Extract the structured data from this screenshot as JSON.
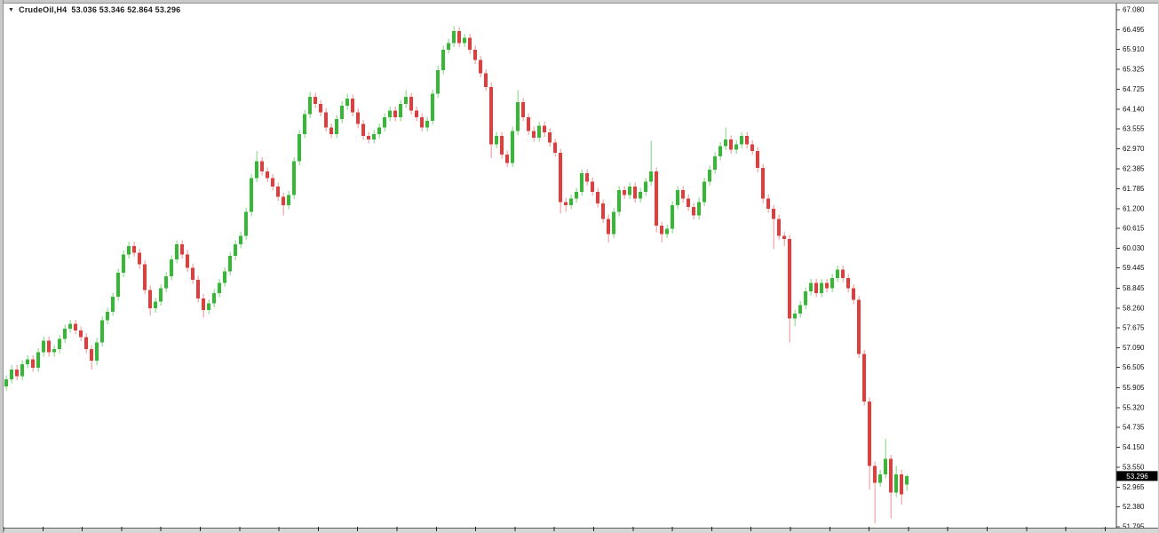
{
  "header": {
    "dropdown_icon": "▼",
    "symbol": "CrudeOil,H4",
    "ohlc_text": "53.036 53.346 52.864 53.296",
    "open": "53.036",
    "high": "53.346",
    "low": "52.864",
    "close": "53.296"
  },
  "price_axis": {
    "current_price_label": "53.296"
  },
  "colors": {
    "background": "#ffffff",
    "up_body": "#35b935",
    "down_body": "#e23c3c",
    "up_wick": "#a9e2a9",
    "down_wick": "#f3b6b6",
    "axis_line": "#3c3c3c",
    "axis_text": "#111111",
    "badge_bg": "#000000",
    "badge_text": "#ffffff",
    "time_bar_fill": "#d6d6d6",
    "time_bar_line": "#5f5f5f",
    "tick": "#222222"
  },
  "chart_data": {
    "type": "candlestick",
    "symbol": "CrudeOil",
    "timeframe": "H4",
    "title": "CrudeOil,H4",
    "grid": false,
    "price_top": 67.08,
    "price_bottom": 51.795,
    "last_close": 53.296,
    "y_axis_labels": [
      "67.080",
      "66.495",
      "65.910",
      "65.325",
      "64.725",
      "64.140",
      "63.555",
      "62.970",
      "62.385",
      "61.785",
      "61.200",
      "60.615",
      "60.030",
      "59.445",
      "58.845",
      "58.260",
      "57.675",
      "57.090",
      "56.505",
      "55.905",
      "55.320",
      "54.735",
      "54.150",
      "53.550",
      "52.965",
      "52.380",
      "51.795"
    ],
    "candles": [
      [
        55.95,
        56.27,
        55.83,
        56.15
      ],
      [
        56.15,
        56.57,
        56.03,
        56.45
      ],
      [
        56.45,
        56.57,
        56.13,
        56.25
      ],
      [
        56.25,
        56.72,
        56.13,
        56.6
      ],
      [
        56.6,
        56.87,
        56.48,
        56.75
      ],
      [
        56.75,
        56.87,
        56.38,
        56.5
      ],
      [
        56.5,
        57.07,
        56.38,
        56.95
      ],
      [
        56.95,
        57.42,
        56.83,
        57.3
      ],
      [
        57.3,
        57.42,
        56.83,
        56.95
      ],
      [
        56.95,
        57.17,
        56.83,
        57.05
      ],
      [
        57.05,
        57.47,
        56.93,
        57.35
      ],
      [
        57.35,
        57.77,
        57.23,
        57.65
      ],
      [
        57.65,
        57.92,
        57.53,
        57.8
      ],
      [
        57.8,
        57.92,
        57.48,
        57.6
      ],
      [
        57.6,
        57.72,
        57.28,
        57.4
      ],
      [
        57.4,
        57.52,
        56.93,
        57.05
      ],
      [
        57.05,
        57.17,
        56.45,
        56.7
      ],
      [
        56.7,
        57.37,
        56.58,
        57.25
      ],
      [
        57.25,
        58.02,
        57.13,
        57.9
      ],
      [
        57.9,
        58.27,
        57.78,
        58.15
      ],
      [
        58.15,
        58.72,
        58.03,
        58.6
      ],
      [
        58.6,
        59.42,
        58.48,
        59.3
      ],
      [
        59.3,
        59.97,
        59.18,
        59.85
      ],
      [
        59.85,
        60.22,
        59.73,
        60.1
      ],
      [
        60.1,
        60.22,
        59.78,
        59.9
      ],
      [
        59.9,
        60.02,
        59.43,
        59.55
      ],
      [
        59.55,
        59.67,
        58.68,
        58.8
      ],
      [
        58.8,
        58.92,
        58.05,
        58.25
      ],
      [
        58.25,
        58.57,
        58.13,
        58.45
      ],
      [
        58.45,
        58.97,
        58.33,
        58.85
      ],
      [
        58.85,
        59.32,
        58.73,
        59.2
      ],
      [
        59.2,
        59.82,
        59.08,
        59.7
      ],
      [
        59.7,
        60.27,
        59.58,
        60.15
      ],
      [
        60.15,
        60.27,
        59.73,
        59.85
      ],
      [
        59.85,
        59.97,
        59.33,
        59.45
      ],
      [
        59.45,
        59.57,
        58.98,
        59.1
      ],
      [
        59.1,
        59.22,
        58.43,
        58.55
      ],
      [
        58.55,
        58.67,
        57.98,
        58.2
      ],
      [
        58.2,
        58.52,
        58.08,
        58.4
      ],
      [
        58.4,
        58.82,
        58.28,
        58.7
      ],
      [
        58.7,
        59.12,
        58.58,
        59.0
      ],
      [
        59.0,
        59.47,
        58.88,
        59.35
      ],
      [
        59.35,
        59.92,
        59.23,
        59.8
      ],
      [
        59.8,
        60.27,
        59.68,
        60.15
      ],
      [
        60.15,
        60.52,
        60.03,
        60.4
      ],
      [
        60.4,
        61.22,
        60.28,
        61.1
      ],
      [
        61.1,
        62.22,
        60.98,
        62.1
      ],
      [
        62.1,
        62.9,
        61.98,
        62.6
      ],
      [
        62.6,
        62.72,
        62.18,
        62.3
      ],
      [
        62.3,
        62.42,
        61.98,
        62.1
      ],
      [
        62.1,
        62.22,
        61.73,
        61.85
      ],
      [
        61.85,
        61.97,
        61.43,
        61.55
      ],
      [
        61.55,
        61.67,
        61.0,
        61.3
      ],
      [
        61.3,
        61.72,
        61.18,
        61.6
      ],
      [
        61.6,
        62.72,
        61.48,
        62.6
      ],
      [
        62.6,
        63.52,
        62.48,
        63.4
      ],
      [
        63.4,
        64.12,
        63.28,
        64.0
      ],
      [
        64.0,
        64.65,
        63.88,
        64.5
      ],
      [
        64.5,
        64.62,
        64.18,
        64.3
      ],
      [
        64.3,
        64.42,
        63.93,
        64.05
      ],
      [
        64.05,
        64.17,
        63.48,
        63.6
      ],
      [
        63.6,
        63.72,
        63.28,
        63.4
      ],
      [
        63.4,
        63.97,
        63.28,
        63.85
      ],
      [
        63.85,
        64.37,
        63.73,
        64.25
      ],
      [
        64.25,
        64.6,
        64.13,
        64.45
      ],
      [
        64.45,
        64.57,
        63.93,
        64.05
      ],
      [
        64.05,
        64.17,
        63.58,
        63.7
      ],
      [
        63.7,
        63.82,
        63.23,
        63.35
      ],
      [
        63.35,
        63.47,
        63.13,
        63.25
      ],
      [
        63.25,
        63.52,
        63.13,
        63.4
      ],
      [
        63.4,
        63.72,
        63.28,
        63.6
      ],
      [
        63.6,
        64.02,
        63.48,
        63.9
      ],
      [
        63.9,
        64.22,
        63.78,
        64.1
      ],
      [
        64.1,
        64.22,
        63.78,
        63.9
      ],
      [
        63.9,
        64.42,
        63.78,
        64.3
      ],
      [
        64.3,
        64.7,
        64.18,
        64.5
      ],
      [
        64.5,
        64.62,
        63.98,
        64.1
      ],
      [
        64.1,
        64.22,
        63.78,
        63.9
      ],
      [
        63.9,
        64.02,
        63.48,
        63.6
      ],
      [
        63.6,
        63.92,
        63.48,
        63.8
      ],
      [
        63.8,
        64.72,
        63.68,
        64.6
      ],
      [
        64.6,
        65.42,
        64.48,
        65.3
      ],
      [
        65.3,
        66.02,
        65.18,
        65.9
      ],
      [
        65.9,
        66.22,
        65.78,
        66.1
      ],
      [
        66.1,
        66.6,
        65.98,
        66.45
      ],
      [
        66.45,
        66.57,
        65.98,
        66.1
      ],
      [
        66.1,
        66.37,
        65.98,
        66.25
      ],
      [
        66.25,
        66.37,
        65.78,
        65.9
      ],
      [
        65.9,
        66.02,
        65.48,
        65.6
      ],
      [
        65.6,
        65.72,
        65.08,
        65.2
      ],
      [
        65.2,
        65.32,
        64.68,
        64.8
      ],
      [
        64.8,
        64.92,
        62.7,
        63.1
      ],
      [
        63.1,
        63.47,
        62.98,
        63.35
      ],
      [
        63.35,
        63.47,
        62.68,
        62.8
      ],
      [
        62.8,
        62.92,
        62.43,
        62.55
      ],
      [
        62.55,
        63.62,
        62.43,
        63.5
      ],
      [
        63.5,
        64.7,
        63.38,
        64.35
      ],
      [
        64.35,
        64.47,
        63.78,
        63.9
      ],
      [
        63.9,
        64.02,
        63.38,
        63.5
      ],
      [
        63.5,
        63.62,
        63.18,
        63.3
      ],
      [
        63.3,
        63.77,
        63.18,
        63.65
      ],
      [
        63.65,
        63.77,
        63.33,
        63.45
      ],
      [
        63.45,
        63.57,
        63.03,
        63.15
      ],
      [
        63.15,
        63.27,
        62.73,
        62.85
      ],
      [
        62.85,
        62.97,
        61.05,
        61.4
      ],
      [
        61.4,
        61.52,
        61.1,
        61.3
      ],
      [
        61.3,
        61.62,
        61.18,
        61.5
      ],
      [
        61.5,
        61.82,
        61.38,
        61.7
      ],
      [
        61.7,
        62.37,
        61.58,
        62.25
      ],
      [
        62.25,
        62.37,
        61.88,
        62.0
      ],
      [
        62.0,
        62.12,
        61.58,
        61.7
      ],
      [
        61.7,
        61.82,
        61.23,
        61.35
      ],
      [
        61.35,
        61.47,
        60.78,
        60.9
      ],
      [
        60.9,
        61.02,
        60.2,
        60.45
      ],
      [
        60.45,
        61.22,
        60.33,
        61.1
      ],
      [
        61.1,
        61.87,
        60.98,
        61.75
      ],
      [
        61.75,
        61.87,
        61.48,
        61.6
      ],
      [
        61.6,
        61.97,
        61.48,
        61.85
      ],
      [
        61.85,
        61.97,
        61.38,
        61.5
      ],
      [
        61.5,
        61.82,
        61.38,
        61.7
      ],
      [
        61.7,
        62.12,
        61.58,
        62.0
      ],
      [
        62.0,
        63.2,
        61.88,
        62.3
      ],
      [
        62.3,
        62.42,
        60.5,
        60.7
      ],
      [
        60.7,
        60.82,
        60.2,
        60.45
      ],
      [
        60.45,
        60.72,
        60.33,
        60.6
      ],
      [
        60.6,
        61.42,
        60.48,
        61.3
      ],
      [
        61.3,
        61.87,
        61.18,
        61.75
      ],
      [
        61.75,
        61.87,
        61.38,
        61.5
      ],
      [
        61.5,
        61.62,
        61.13,
        61.25
      ],
      [
        61.25,
        61.37,
        60.88,
        61.0
      ],
      [
        61.0,
        61.52,
        60.88,
        61.4
      ],
      [
        61.4,
        62.12,
        61.28,
        62.0
      ],
      [
        62.0,
        62.47,
        61.88,
        62.35
      ],
      [
        62.35,
        62.87,
        62.23,
        62.75
      ],
      [
        62.75,
        63.17,
        62.63,
        63.05
      ],
      [
        63.05,
        63.6,
        62.93,
        63.25
      ],
      [
        63.25,
        63.37,
        62.83,
        62.95
      ],
      [
        62.95,
        63.22,
        62.83,
        63.1
      ],
      [
        63.1,
        63.47,
        62.98,
        63.35
      ],
      [
        63.35,
        63.47,
        62.98,
        63.1
      ],
      [
        63.1,
        63.22,
        62.78,
        62.9
      ],
      [
        62.9,
        63.02,
        62.28,
        62.4
      ],
      [
        62.4,
        62.52,
        61.35,
        61.5
      ],
      [
        61.5,
        61.62,
        61.08,
        61.2
      ],
      [
        61.2,
        61.32,
        60.0,
        60.9
      ],
      [
        60.9,
        61.02,
        60.28,
        60.4
      ],
      [
        60.4,
        60.52,
        60.1,
        60.3
      ],
      [
        60.3,
        60.42,
        57.25,
        57.95
      ],
      [
        57.95,
        58.22,
        57.73,
        58.1
      ],
      [
        58.1,
        58.47,
        57.98,
        58.35
      ],
      [
        58.35,
        58.87,
        58.23,
        58.75
      ],
      [
        58.75,
        59.12,
        58.63,
        59.0
      ],
      [
        59.0,
        59.12,
        58.58,
        58.7
      ],
      [
        58.7,
        59.12,
        58.58,
        59.0
      ],
      [
        59.0,
        59.12,
        58.73,
        58.85
      ],
      [
        58.85,
        59.27,
        58.73,
        59.15
      ],
      [
        59.15,
        59.52,
        59.03,
        59.4
      ],
      [
        59.4,
        59.52,
        59.03,
        59.15
      ],
      [
        59.15,
        59.27,
        58.73,
        58.85
      ],
      [
        58.85,
        58.97,
        58.38,
        58.5
      ],
      [
        58.5,
        58.62,
        56.78,
        56.9
      ],
      [
        56.9,
        57.02,
        55.38,
        55.5
      ],
      [
        55.5,
        55.62,
        52.9,
        53.6
      ],
      [
        53.6,
        53.72,
        51.9,
        53.1
      ],
      [
        53.1,
        53.47,
        52.98,
        53.35
      ],
      [
        53.35,
        54.4,
        53.23,
        53.8
      ],
      [
        53.8,
        53.92,
        52.05,
        52.8
      ],
      [
        52.8,
        53.6,
        52.68,
        53.35
      ],
      [
        53.35,
        53.47,
        52.45,
        52.75
      ],
      [
        53.036,
        53.346,
        52.864,
        53.296
      ]
    ]
  }
}
